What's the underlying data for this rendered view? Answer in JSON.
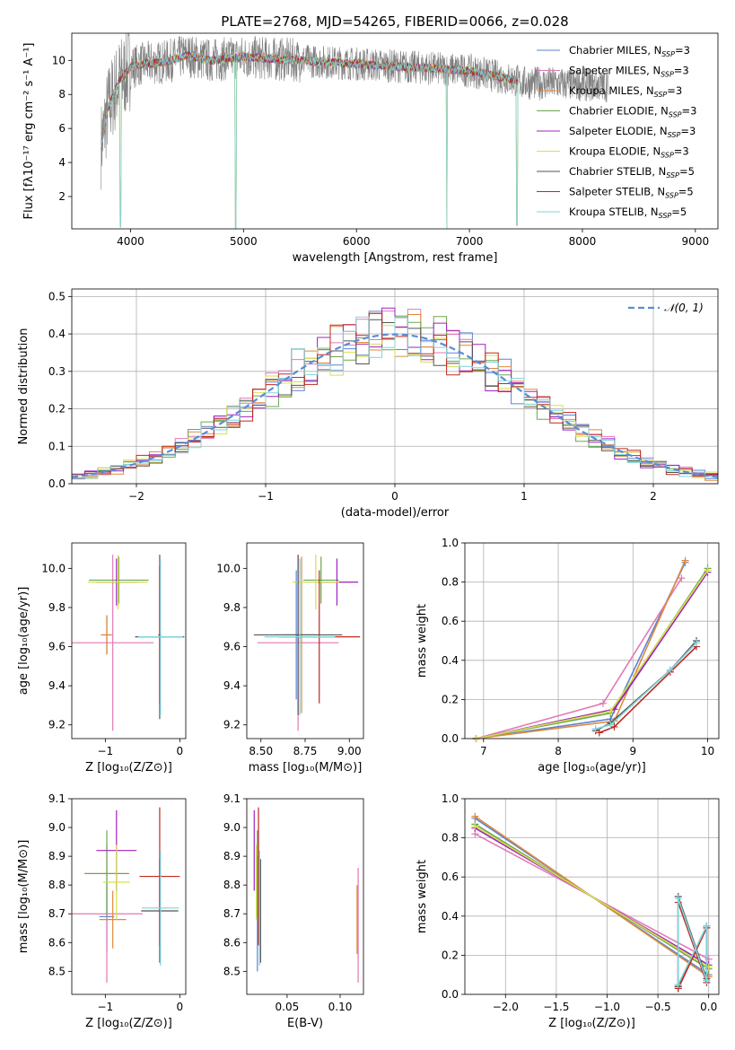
{
  "figure_title": "PLATE=2768, MJD=54265, FIBERID=0066, z=0.028",
  "colors": {
    "Chabrier MILES": "#5b83d6",
    "Salpeter MILES": "#e07ab6",
    "Kroupa MILES": "#e0893a",
    "Chabrier ELODIE": "#6aa84f",
    "Salpeter ELODIE": "#a020c0",
    "Kroupa ELODIE": "#d6e04a",
    "Chabrier STELIB": "#555555",
    "Salpeter STELIB": "#c0281e",
    "Kroupa STELIB": "#7fd3dd"
  },
  "legend_spectrum": [
    {
      "name": "Chabrier MILES, N",
      "sub": "SSP",
      "tail": "=3"
    },
    {
      "name": "Salpeter MILES, N",
      "sub": "SSP",
      "tail": "=3"
    },
    {
      "name": "Kroupa MILES, N",
      "sub": "SSP",
      "tail": "=3"
    },
    {
      "name": "Chabrier ELODIE, N",
      "sub": "SSP",
      "tail": "=3"
    },
    {
      "name": "Salpeter ELODIE, N",
      "sub": "SSP",
      "tail": "=3"
    },
    {
      "name": "Kroupa ELODIE, N",
      "sub": "SSP",
      "tail": "=3"
    },
    {
      "name": "Chabrier STELIB, N",
      "sub": "SSP",
      "tail": "=5"
    },
    {
      "name": "Salpeter STELIB, N",
      "sub": "SSP",
      "tail": "=5"
    },
    {
      "name": "Kroupa STELIB, N",
      "sub": "SSP",
      "tail": "=5"
    }
  ],
  "chart_data": [
    {
      "id": "spectrum",
      "type": "line",
      "xlabel": "wavelength [Angstrom, rest frame]",
      "ylabel": "Flux [fλ10⁻¹⁷ erg cm⁻² s⁻¹ A⁻¹]",
      "xlim": [
        3480,
        9200
      ],
      "ylim": [
        0.1,
        11.6
      ],
      "xticks": [
        4000,
        5000,
        6000,
        7000,
        8000,
        9000
      ],
      "yticks": [
        2,
        4,
        6,
        8,
        10
      ],
      "grid": false,
      "data_range": [
        3740,
        7430
      ],
      "continuum": [
        [
          3740,
          5.0
        ],
        [
          3800,
          7.2
        ],
        [
          3900,
          8.8
        ],
        [
          4000,
          9.6
        ],
        [
          4100,
          9.8
        ],
        [
          4300,
          9.9
        ],
        [
          4500,
          10.3
        ],
        [
          4700,
          10.0
        ],
        [
          5000,
          10.2
        ],
        [
          5500,
          10.0
        ],
        [
          6000,
          9.8
        ],
        [
          6500,
          9.6
        ],
        [
          7000,
          9.4
        ],
        [
          7430,
          8.8
        ]
      ],
      "dips": [
        [
          3910,
          0.2
        ],
        [
          4930,
          0.1
        ],
        [
          6800,
          0.1
        ],
        [
          7420,
          0.3
        ]
      ]
    },
    {
      "id": "residuals",
      "type": "line",
      "xlabel": "(data-model)/error",
      "ylabel": "Normed distribution",
      "xlim": [
        -2.5,
        2.5
      ],
      "ylim": [
        0.0,
        0.52
      ],
      "xticks": [
        -2,
        -1,
        0,
        1,
        2
      ],
      "yticks": [
        0.0,
        0.1,
        0.2,
        0.3,
        0.4,
        0.5
      ],
      "grid": true,
      "legend": "𝒩(0, 1)",
      "legend_loc": "upper right",
      "bin_edges": [
        -2.5,
        -2.4,
        -2.3,
        -2.2,
        -2.1,
        -2.0,
        -1.9,
        -1.8,
        -1.7,
        -1.6,
        -1.5,
        -1.4,
        -1.3,
        -1.2,
        -1.1,
        -1.0,
        -0.9,
        -0.8,
        -0.7,
        -0.6,
        -0.5,
        -0.4,
        -0.3,
        -0.2,
        -0.1,
        0.0,
        0.1,
        0.2,
        0.3,
        0.4,
        0.5,
        0.6,
        0.7,
        0.8,
        0.9,
        1.0,
        1.1,
        1.2,
        1.3,
        1.4,
        1.5,
        1.6,
        1.7,
        1.8,
        1.9,
        2.0,
        2.1,
        2.2,
        2.3,
        2.4,
        2.5
      ]
    },
    {
      "id": "age_vs_Z",
      "type": "errorbar",
      "xlabel": "Z [log₁₀(Z/Z⊙)]",
      "ylabel": "age  [log₁₀(age/yr)]",
      "xlim": [
        -1.45,
        0.08
      ],
      "ylim": [
        9.13,
        10.13
      ],
      "xticks": [
        -1,
        0
      ],
      "yticks": [
        9.2,
        9.4,
        9.6,
        9.8,
        10.0
      ],
      "points": [
        {
          "model": "Chabrier MILES",
          "x": -0.98,
          "xerr": 0.05,
          "y": 9.66,
          "yerr": 0.1
        },
        {
          "model": "Salpeter MILES",
          "x": -0.9,
          "xerr": 0.55,
          "y": 9.62,
          "yerr": 0.45
        },
        {
          "model": "Kroupa MILES",
          "x": -0.98,
          "xerr": 0.08,
          "y": 9.66,
          "yerr": 0.1
        },
        {
          "model": "Chabrier ELODIE",
          "x": -0.82,
          "xerr": 0.4,
          "y": 9.94,
          "yerr": 0.12
        },
        {
          "model": "Salpeter ELODIE",
          "x": -0.85,
          "xerr": 0.28,
          "y": 9.93,
          "yerr": 0.12
        },
        {
          "model": "Kroupa ELODIE",
          "x": -0.83,
          "xerr": 0.4,
          "y": 9.93,
          "yerr": 0.14
        },
        {
          "model": "Chabrier STELIB",
          "x": -0.27,
          "xerr": 0.33,
          "y": 9.65,
          "yerr": 0.42
        },
        {
          "model": "Salpeter STELIB",
          "x": -0.27,
          "xerr": 0.02,
          "y": 9.66,
          "yerr": 0.35
        },
        {
          "model": "Kroupa STELIB",
          "x": -0.26,
          "xerr": 0.3,
          "y": 9.65,
          "yerr": 0.4
        }
      ]
    },
    {
      "id": "age_vs_mass",
      "type": "errorbar",
      "xlabel": "mass [log₁₀(M/M⊙)]",
      "ylabel": "",
      "xlim": [
        8.42,
        9.08
      ],
      "ylim": [
        9.13,
        10.13
      ],
      "xticks": [
        8.5,
        8.75,
        9.0
      ],
      "yticks": [
        9.2,
        9.4,
        9.6,
        9.8,
        10.0
      ],
      "points": [
        {
          "model": "Chabrier MILES",
          "x": 8.7,
          "xerr": 0.12,
          "y": 9.66,
          "yerr": 0.33
        },
        {
          "model": "Salpeter MILES",
          "x": 8.71,
          "xerr": 0.23,
          "y": 9.62,
          "yerr": 0.45
        },
        {
          "model": "Kroupa MILES",
          "x": 8.73,
          "xerr": 0.1,
          "y": 9.66,
          "yerr": 0.4
        },
        {
          "model": "Chabrier ELODIE",
          "x": 8.84,
          "xerr": 0.1,
          "y": 9.94,
          "yerr": 0.12
        },
        {
          "model": "Salpeter ELODIE",
          "x": 8.93,
          "xerr": 0.12,
          "y": 9.93,
          "yerr": 0.12
        },
        {
          "model": "Kroupa ELODIE",
          "x": 8.81,
          "xerr": 0.13,
          "y": 9.93,
          "yerr": 0.14
        },
        {
          "model": "Chabrier STELIB",
          "x": 8.71,
          "xerr": 0.25,
          "y": 9.66,
          "yerr": 0.41
        },
        {
          "model": "Salpeter STELIB",
          "x": 8.83,
          "xerr": 0.23,
          "y": 9.65,
          "yerr": 0.34
        },
        {
          "model": "Kroupa STELIB",
          "x": 8.72,
          "xerr": 0.2,
          "y": 9.65,
          "yerr": 0.4
        }
      ]
    },
    {
      "id": "weight_vs_age",
      "type": "line",
      "xlabel": "age  [log₁₀(age/yr)]",
      "ylabel": "mass weight",
      "xlim": [
        6.75,
        10.15
      ],
      "ylim": [
        0.0,
        1.0
      ],
      "xticks": [
        7,
        8,
        9,
        10
      ],
      "yticks": [
        0.0,
        0.2,
        0.4,
        0.6,
        0.8,
        1.0
      ],
      "grid": true,
      "series": [
        {
          "model": "Chabrier MILES",
          "x": [
            6.9,
            8.7,
            9.7
          ],
          "y": [
            0.0,
            0.1,
            0.9
          ]
        },
        {
          "model": "Salpeter MILES",
          "x": [
            6.9,
            8.6,
            9.65
          ],
          "y": [
            0.0,
            0.18,
            0.82
          ]
        },
        {
          "model": "Kroupa MILES",
          "x": [
            6.9,
            8.75,
            9.7
          ],
          "y": [
            0.0,
            0.09,
            0.91
          ]
        },
        {
          "model": "Chabrier ELODIE",
          "x": [
            6.9,
            8.7,
            10.0
          ],
          "y": [
            0.0,
            0.13,
            0.87
          ]
        },
        {
          "model": "Salpeter ELODIE",
          "x": [
            6.9,
            8.75,
            10.0
          ],
          "y": [
            0.0,
            0.15,
            0.85
          ]
        },
        {
          "model": "Kroupa ELODIE",
          "x": [
            6.9,
            8.7,
            10.0
          ],
          "y": [
            0.0,
            0.14,
            0.86
          ]
        },
        {
          "model": "Chabrier STELIB",
          "x": [
            8.5,
            8.7,
            9.5,
            9.85
          ],
          "y": [
            0.04,
            0.08,
            0.35,
            0.5
          ]
        },
        {
          "model": "Salpeter STELIB",
          "x": [
            8.55,
            8.75,
            9.5,
            9.85
          ],
          "y": [
            0.03,
            0.06,
            0.34,
            0.47
          ]
        },
        {
          "model": "Kroupa STELIB",
          "x": [
            8.5,
            8.7,
            9.5,
            9.85
          ],
          "y": [
            0.05,
            0.07,
            0.35,
            0.49
          ]
        }
      ]
    },
    {
      "id": "mass_vs_Z",
      "type": "errorbar",
      "xlabel": "Z [log₁₀(Z/Z⊙)]",
      "ylabel": "mass [log₁₀(M/M⊙)]",
      "xlim": [
        -1.45,
        0.08
      ],
      "ylim": [
        8.42,
        9.1
      ],
      "xticks": [
        -1,
        0
      ],
      "yticks": [
        8.5,
        8.6,
        8.7,
        8.8,
        8.9,
        9.0,
        9.1
      ],
      "points": [
        {
          "model": "Chabrier MILES",
          "x": -0.98,
          "xerr": 0.1,
          "y": 8.69,
          "yerr": 0.12
        },
        {
          "model": "Salpeter MILES",
          "x": -0.98,
          "xerr": 0.48,
          "y": 8.7,
          "yerr": 0.24
        },
        {
          "model": "Kroupa MILES",
          "x": -0.9,
          "xerr": 0.18,
          "y": 8.68,
          "yerr": 0.1
        },
        {
          "model": "Chabrier ELODIE",
          "x": -0.98,
          "xerr": 0.3,
          "y": 8.84,
          "yerr": 0.15
        },
        {
          "model": "Salpeter ELODIE",
          "x": -0.85,
          "xerr": 0.27,
          "y": 8.92,
          "yerr": 0.14
        },
        {
          "model": "Kroupa ELODIE",
          "x": -0.85,
          "xerr": 0.18,
          "y": 8.81,
          "yerr": 0.13
        },
        {
          "model": "Chabrier STELIB",
          "x": -0.27,
          "xerr": 0.25,
          "y": 8.71,
          "yerr": 0.18
        },
        {
          "model": "Salpeter STELIB",
          "x": -0.27,
          "xerr": 0.27,
          "y": 8.83,
          "yerr": 0.24
        },
        {
          "model": "Kroupa STELIB",
          "x": -0.26,
          "xerr": 0.25,
          "y": 8.72,
          "yerr": 0.2
        }
      ]
    },
    {
      "id": "mass_vs_EBV",
      "type": "errorbar",
      "xlabel": "E(B-V)",
      "ylabel": "",
      "xlim": [
        0.012,
        0.122
      ],
      "ylim": [
        8.42,
        9.1
      ],
      "xticks": [
        0.05,
        0.1
      ],
      "yticks": [
        8.5,
        8.6,
        8.7,
        8.8,
        8.9,
        9.0,
        9.1
      ],
      "points": [
        {
          "model": "Chabrier MILES",
          "x": 0.022,
          "xerr": 0,
          "y": 8.7,
          "yerr": 0.2
        },
        {
          "model": "Salpeter MILES",
          "x": 0.117,
          "xerr": 0,
          "y": 8.66,
          "yerr": 0.2
        },
        {
          "model": "Kroupa MILES",
          "x": 0.116,
          "xerr": 0,
          "y": 8.68,
          "yerr": 0.12
        },
        {
          "model": "Chabrier ELODIE",
          "x": 0.022,
          "xerr": 0,
          "y": 8.84,
          "yerr": 0.15
        },
        {
          "model": "Salpeter ELODIE",
          "x": 0.019,
          "xerr": 0,
          "y": 8.92,
          "yerr": 0.14
        },
        {
          "model": "Kroupa ELODIE",
          "x": 0.021,
          "xerr": 0,
          "y": 8.81,
          "yerr": 0.13
        },
        {
          "model": "Chabrier STELIB",
          "x": 0.025,
          "xerr": 0,
          "y": 8.71,
          "yerr": 0.18
        },
        {
          "model": "Salpeter STELIB",
          "x": 0.023,
          "xerr": 0,
          "y": 8.83,
          "yerr": 0.24
        },
        {
          "model": "Kroupa STELIB",
          "x": 0.024,
          "xerr": 0,
          "y": 8.72,
          "yerr": 0.2
        }
      ]
    },
    {
      "id": "weight_vs_Z",
      "type": "line",
      "xlabel": "Z [log₁₀(Z/Z⊙)]",
      "ylabel": "mass weight",
      "xlim": [
        -2.4,
        0.1
      ],
      "ylim": [
        0.0,
        1.0
      ],
      "xticks": [
        -2.0,
        -1.5,
        -1.0,
        -0.5,
        0.0
      ],
      "yticks": [
        0.0,
        0.2,
        0.4,
        0.6,
        0.8,
        1.0
      ],
      "grid": true,
      "series": [
        {
          "model": "Chabrier MILES",
          "x": [
            -2.3,
            0.0
          ],
          "y": [
            0.9,
            0.1
          ]
        },
        {
          "model": "Salpeter MILES",
          "x": [
            -2.3,
            0.0
          ],
          "y": [
            0.82,
            0.18
          ]
        },
        {
          "model": "Kroupa MILES",
          "x": [
            -2.3,
            0.0
          ],
          "y": [
            0.91,
            0.09
          ]
        },
        {
          "model": "Chabrier ELODIE",
          "x": [
            -2.3,
            0.0
          ],
          "y": [
            0.87,
            0.13
          ]
        },
        {
          "model": "Salpeter ELODIE",
          "x": [
            -2.3,
            0.0
          ],
          "y": [
            0.85,
            0.15
          ]
        },
        {
          "model": "Kroupa ELODIE",
          "x": [
            -2.3,
            0.0
          ],
          "y": [
            0.86,
            0.14
          ]
        },
        {
          "model": "Chabrier STELIB",
          "x": [
            -0.3,
            -0.3,
            -0.02,
            -0.02,
            -0.3
          ],
          "y": [
            0.04,
            0.5,
            0.08,
            0.35,
            0.04
          ]
        },
        {
          "model": "Salpeter STELIB",
          "x": [
            -0.3,
            -0.3,
            -0.02,
            -0.02,
            -0.3
          ],
          "y": [
            0.03,
            0.47,
            0.06,
            0.34,
            0.03
          ]
        },
        {
          "model": "Kroupa STELIB",
          "x": [
            -0.3,
            -0.3,
            -0.02,
            -0.02,
            -0.3
          ],
          "y": [
            0.05,
            0.49,
            0.07,
            0.35,
            0.05
          ]
        }
      ]
    }
  ]
}
